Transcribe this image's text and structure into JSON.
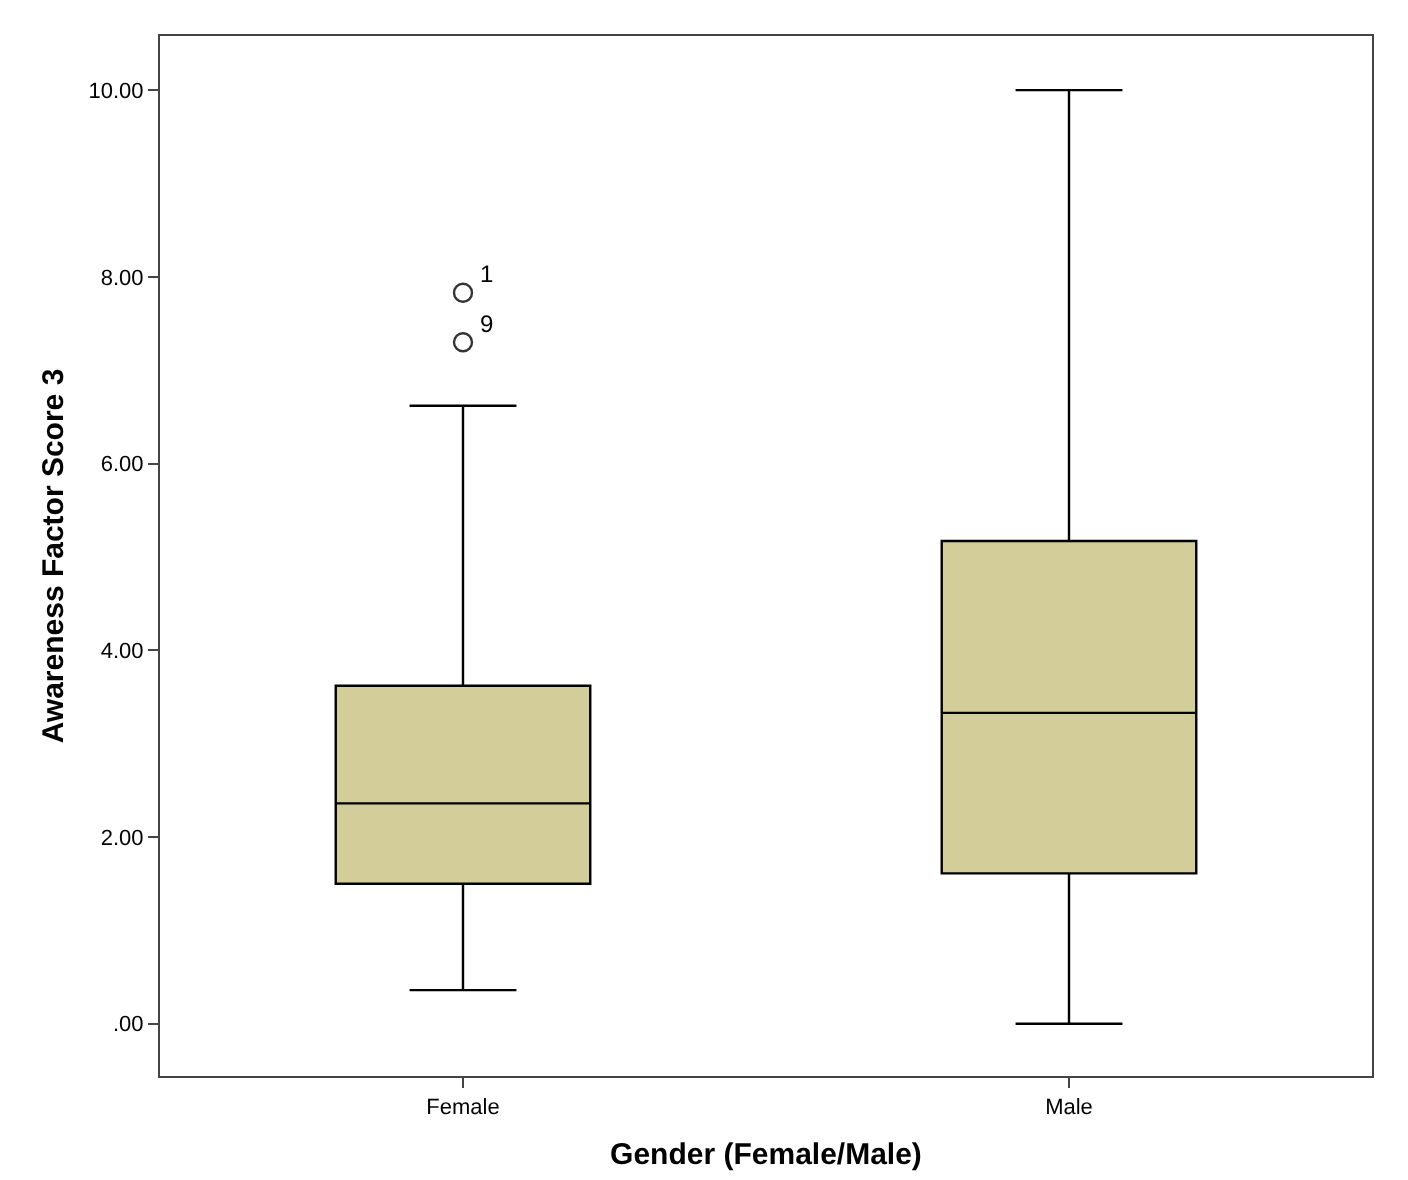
{
  "chart_data": {
    "type": "box",
    "xlabel": "Gender (Female/Male)",
    "ylabel": "Awareness Factor Score 3",
    "categories": [
      "Female",
      "Male"
    ],
    "boxes": [
      {
        "low": 0.36,
        "q1": 1.5,
        "median": 2.36,
        "q3": 3.62,
        "high": 6.62,
        "outliers": [
          7.83,
          7.3
        ]
      },
      {
        "low": 0,
        "q1": 1.61,
        "median": 3.33,
        "q3": 5.17,
        "high": 10
      }
    ],
    "color": "#d3ce99",
    "ylim": [
      -0.56,
      10.58
    ],
    "yticks": [
      {
        "value": 0,
        "label": ".00"
      },
      {
        "value": 2,
        "label": "2.00"
      },
      {
        "value": 4,
        "label": "4.00"
      },
      {
        "value": 6,
        "label": "6.00"
      },
      {
        "value": 8,
        "label": "8.00"
      },
      {
        "value": 10,
        "label": "10.00"
      }
    ],
    "annotations": [
      "1",
      "9"
    ],
    "grid": false,
    "marker": "circle"
  }
}
